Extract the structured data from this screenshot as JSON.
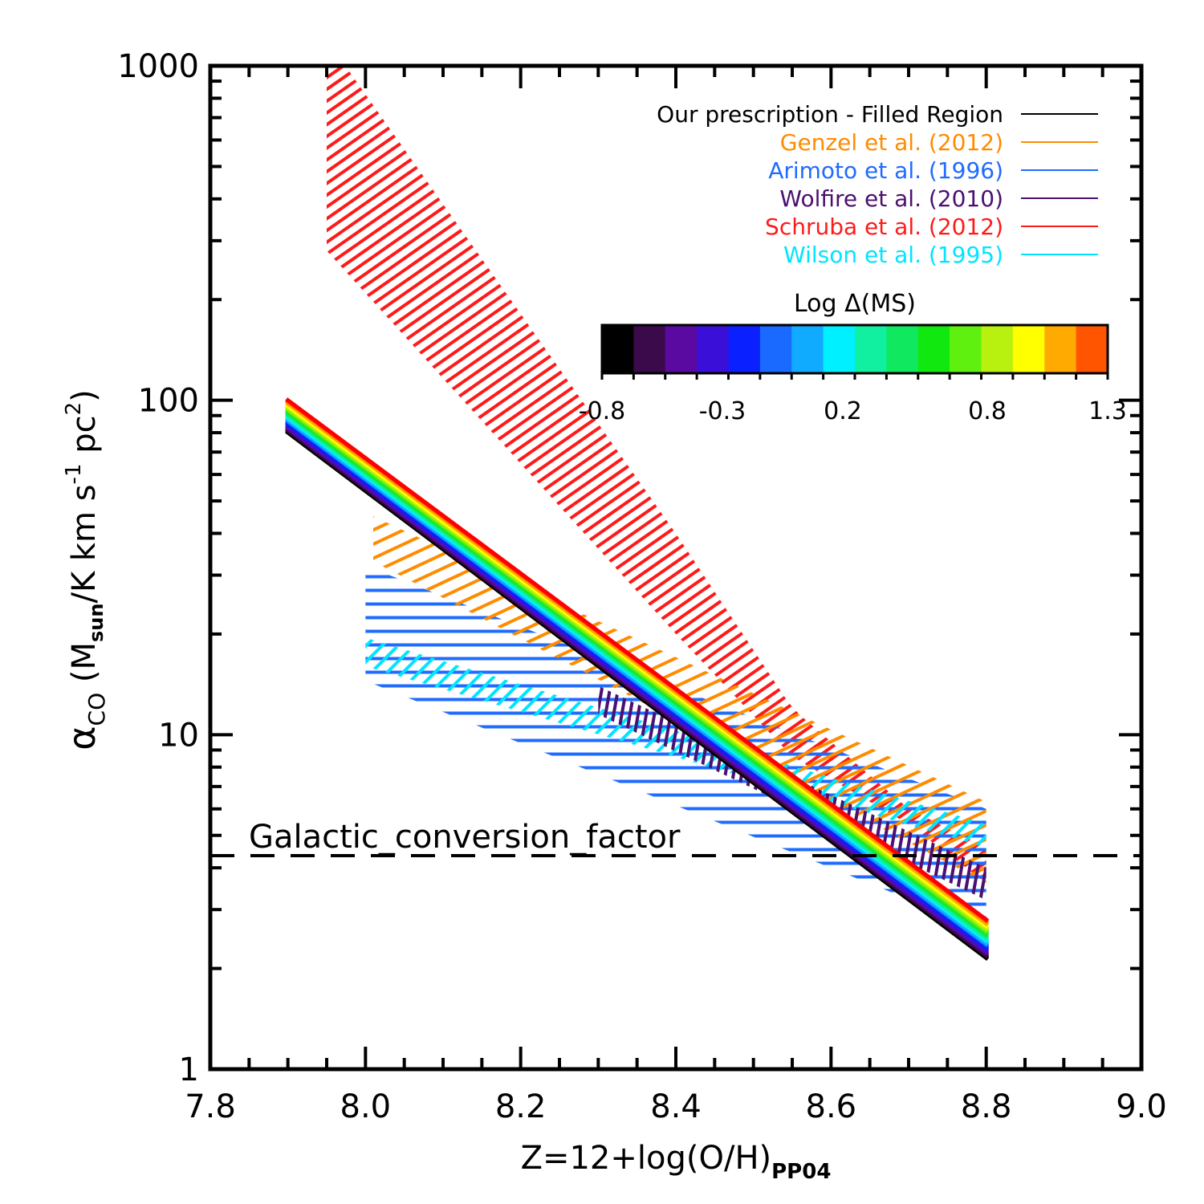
{
  "chart_data": {
    "type": "line",
    "xlabel": "Z=12+log(O/H)",
    "xlabel_sub": "PP04",
    "ylabel_parts": {
      "alpha": "α",
      "alpha_sub": "CO",
      "open": " (M",
      "m_sub": "sun",
      "mid": "/K km s",
      "s_sup": "-1",
      "pc": " pc",
      "pc_sup": "2",
      "close": ")"
    },
    "xlim": [
      7.8,
      9.0
    ],
    "ylim": [
      1,
      1000
    ],
    "yscale": "log",
    "x_ticks": [
      7.8,
      8.0,
      8.2,
      8.4,
      8.6,
      8.8,
      9.0
    ],
    "x_tick_labels": [
      "7.8",
      "8.0",
      "8.2",
      "8.4",
      "8.6",
      "8.8",
      "9.0"
    ],
    "y_ticks": [
      1,
      10,
      100,
      1000
    ],
    "y_tick_labels": [
      "1",
      "10",
      "100",
      "1000"
    ],
    "reference_line": {
      "label": "Galactic_conversion_factor",
      "y": 4.35,
      "style": "dashed"
    },
    "series": [
      {
        "name": "Our prescription - Filled Region",
        "color": "#000000",
        "kind": "gradient-band",
        "x": [
          7.9,
          8.8
        ],
        "y_low": [
          80,
          2.15
        ],
        "y_high": [
          100,
          2.8
        ]
      },
      {
        "name": "Genzel et al. (2012)",
        "color": "#ff8c00",
        "kind": "hatched-band",
        "x": [
          8.01,
          8.8
        ],
        "y_low": [
          33,
          3.6
        ],
        "y_high": [
          45,
          6.3
        ]
      },
      {
        "name": "Arimoto et al. (1996)",
        "color": "#1f6bff",
        "kind": "hatched-band",
        "x": [
          8.0,
          8.8
        ],
        "y_low": [
          14.5,
          2.6
        ],
        "y_high": [
          32,
          6.0
        ]
      },
      {
        "name": "Wolfire et al. (2010)",
        "color": "#4b1070",
        "kind": "hatched-band",
        "x": [
          8.3,
          8.8
        ],
        "y_low": [
          11.5,
          3.2
        ],
        "y_high": [
          14,
          4.0
        ]
      },
      {
        "name": "Schruba et al. (2012)",
        "color": "#ff1a1a",
        "kind": "hatched-band",
        "x": [
          7.95,
          8.4,
          8.55,
          8.7,
          8.8
        ],
        "y_low": [
          280,
          20,
          8.6,
          5.4,
          3.6
        ],
        "y_high": [
          1200,
          40,
          12,
          6.0,
          4.6
        ]
      },
      {
        "name": "Wilson et al. (1995)",
        "color": "#00e5ff",
        "kind": "hatched-band",
        "x": [
          8.0,
          8.8
        ],
        "y_low": [
          16,
          4.6
        ],
        "y_high": [
          19.5,
          5.4
        ]
      }
    ],
    "colorbar": {
      "title": "Log Δ(MS)",
      "range": [
        -0.8,
        1.3
      ],
      "tick_labels": [
        "-0.8",
        "-0.3",
        "0.2",
        "0.8",
        "1.3"
      ],
      "tick_values": [
        -0.8,
        -0.3,
        0.2,
        0.8,
        1.3
      ],
      "colors": [
        "#000000",
        "#3a0a4a",
        "#5a0aa0",
        "#3a10d8",
        "#0a20ff",
        "#1a6aff",
        "#10aaff",
        "#00f0ff",
        "#10f0a0",
        "#10e860",
        "#10e810",
        "#60f010",
        "#b8f010",
        "#ffff00",
        "#ffaa00",
        "#ff5500"
      ]
    }
  }
}
